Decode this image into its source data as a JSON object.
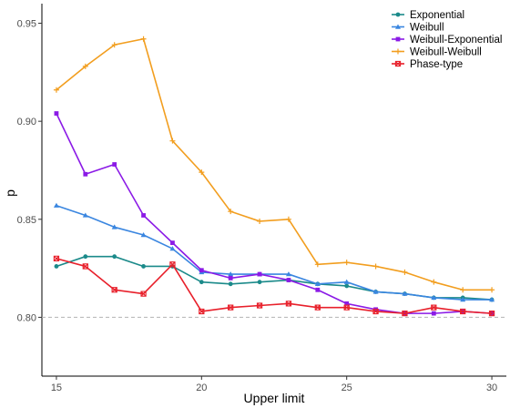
{
  "chart_data": {
    "type": "line",
    "xlabel": "Upper limit",
    "ylabel": "p",
    "xlim": [
      14.5,
      30.5
    ],
    "ylim": [
      0.77,
      0.96
    ],
    "x_ticks": [
      15,
      20,
      25,
      30
    ],
    "y_ticks": [
      0.8,
      0.85,
      0.9,
      0.95
    ],
    "x_tick_labels": [
      "15",
      "20",
      "25",
      "30"
    ],
    "y_tick_labels": [
      "0.80",
      "0.85",
      "0.90",
      "0.95"
    ],
    "grid": false,
    "reference_line": {
      "y": 0.8,
      "style": "dashed",
      "color": "#b3b3b3"
    },
    "legend_position": "top-right",
    "x": [
      15,
      16,
      17,
      18,
      19,
      20,
      21,
      22,
      23,
      24,
      25,
      26,
      27,
      28,
      29,
      30
    ],
    "series": [
      {
        "name": "Exponential",
        "color": "#1b8a8a",
        "marker": "circle",
        "values": [
          0.826,
          0.831,
          0.831,
          0.826,
          0.826,
          0.818,
          0.817,
          0.818,
          0.819,
          0.817,
          0.816,
          0.813,
          0.812,
          0.81,
          0.81,
          0.809
        ]
      },
      {
        "name": "Weibull",
        "color": "#3a86e0",
        "marker": "triangle",
        "values": [
          0.857,
          0.852,
          0.846,
          0.842,
          0.835,
          0.823,
          0.822,
          0.822,
          0.822,
          0.817,
          0.818,
          0.813,
          0.812,
          0.81,
          0.809,
          0.809
        ]
      },
      {
        "name": "Weibull-Exponential",
        "color": "#8b1ae6",
        "marker": "square",
        "values": [
          0.904,
          0.873,
          0.878,
          0.852,
          0.838,
          0.824,
          0.82,
          0.822,
          0.819,
          0.814,
          0.807,
          0.804,
          0.802,
          0.802,
          0.803,
          0.802
        ]
      },
      {
        "name": "Weibull-Weibull",
        "color": "#f29e1f",
        "marker": "plus",
        "values": [
          0.916,
          0.928,
          0.939,
          0.942,
          0.89,
          0.874,
          0.854,
          0.849,
          0.85,
          0.827,
          0.828,
          0.826,
          0.823,
          0.818,
          0.814,
          0.814
        ]
      },
      {
        "name": "Phase-type",
        "color": "#e8202b",
        "marker": "boxcross",
        "values": [
          0.83,
          0.826,
          0.814,
          0.812,
          0.827,
          0.803,
          0.805,
          0.806,
          0.807,
          0.805,
          0.805,
          0.803,
          0.802,
          0.805,
          0.803,
          0.802
        ]
      }
    ]
  }
}
